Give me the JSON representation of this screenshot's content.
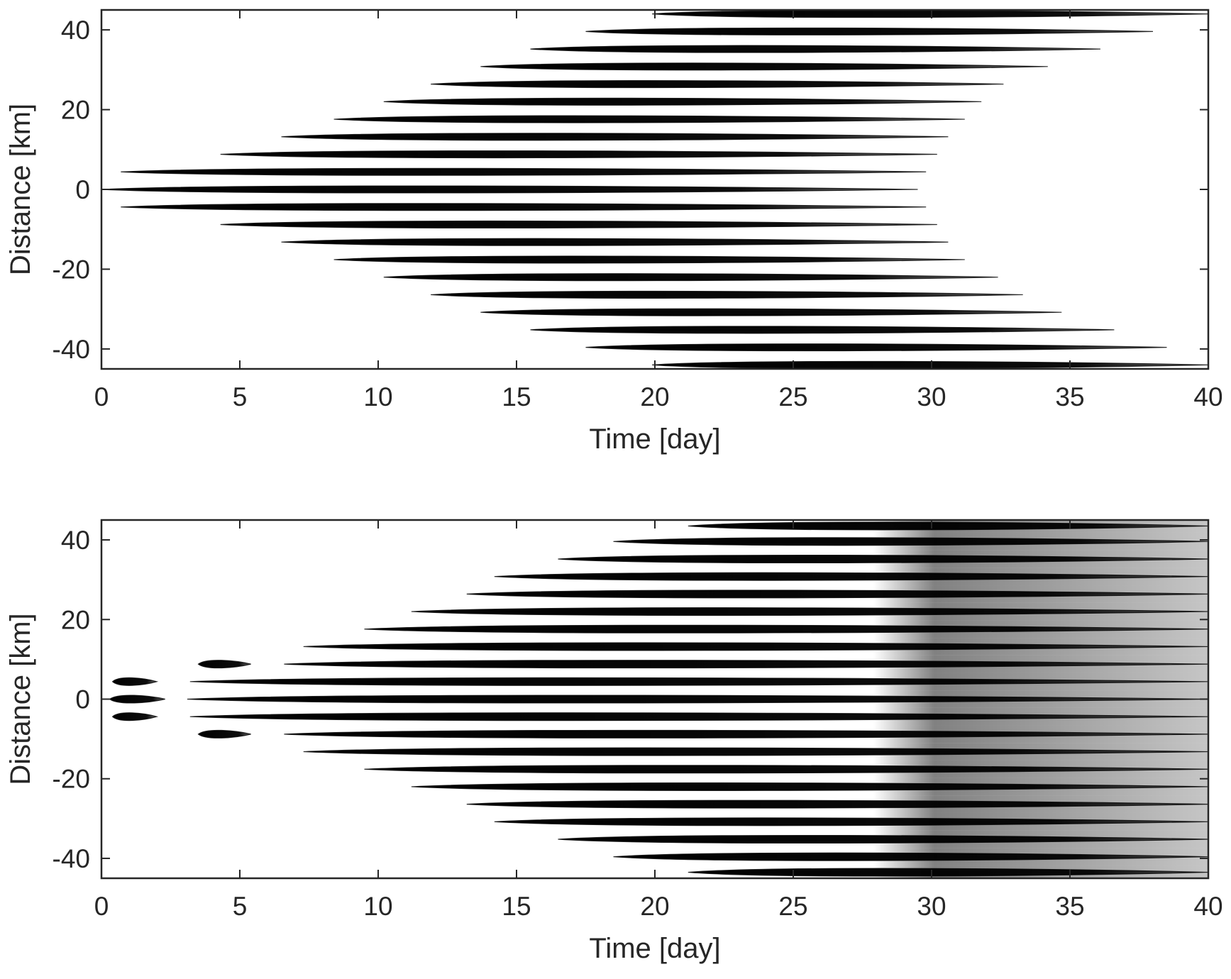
{
  "chart_data": [
    {
      "type": "heatmap",
      "panel": "top",
      "xlabel": "Time [day]",
      "ylabel": "Distance [km]",
      "xlim": [
        0,
        40
      ],
      "ylim": [
        -45,
        45
      ],
      "xticks": [
        0,
        5,
        10,
        15,
        20,
        25,
        30,
        35,
        40
      ],
      "yticks": [
        -40,
        -20,
        0,
        20,
        40
      ],
      "xtick_labels": [
        "0",
        "5",
        "10",
        "15",
        "20",
        "25",
        "30",
        "35",
        "40"
      ],
      "ytick_labels": [
        "-40",
        "-20",
        "0",
        "20",
        "40"
      ],
      "grid": false,
      "colormap": "grayscale",
      "colors": {
        "mark": "#000000",
        "background": "#ffffff",
        "axis": "#262626"
      },
      "streaks": [
        {
          "distance": 0,
          "start": 0.0,
          "end": 29.5
        },
        {
          "distance": 4.4,
          "start": 0.7,
          "end": 29.8
        },
        {
          "distance": -4.4,
          "start": 0.7,
          "end": 29.8
        },
        {
          "distance": 8.8,
          "start": 4.3,
          "end": 30.2
        },
        {
          "distance": -8.8,
          "start": 4.3,
          "end": 30.2
        },
        {
          "distance": 13.2,
          "start": 6.5,
          "end": 30.6
        },
        {
          "distance": -13.2,
          "start": 6.5,
          "end": 30.6
        },
        {
          "distance": 17.6,
          "start": 8.4,
          "end": 31.2
        },
        {
          "distance": -17.6,
          "start": 8.4,
          "end": 31.2
        },
        {
          "distance": 22.0,
          "start": 10.2,
          "end": 31.8
        },
        {
          "distance": -22.0,
          "start": 10.2,
          "end": 32.4
        },
        {
          "distance": 26.4,
          "start": 11.9,
          "end": 32.6
        },
        {
          "distance": -26.4,
          "start": 11.9,
          "end": 33.3
        },
        {
          "distance": 30.8,
          "start": 13.7,
          "end": 34.2
        },
        {
          "distance": -30.8,
          "start": 13.7,
          "end": 34.7
        },
        {
          "distance": 35.2,
          "start": 15.5,
          "end": 36.1
        },
        {
          "distance": -35.2,
          "start": 15.5,
          "end": 36.6
        },
        {
          "distance": 39.6,
          "start": 17.5,
          "end": 38.0
        },
        {
          "distance": -39.6,
          "start": 17.5,
          "end": 38.5
        },
        {
          "distance": 44.0,
          "start": 19.9,
          "end": 40.0
        },
        {
          "distance": -44.0,
          "start": 19.9,
          "end": 40.0
        }
      ]
    },
    {
      "type": "heatmap",
      "panel": "bottom",
      "xlabel": "Time [day]",
      "ylabel": "Distance [km]",
      "xlim": [
        0,
        40
      ],
      "ylim": [
        -45,
        45
      ],
      "xticks": [
        0,
        5,
        10,
        15,
        20,
        25,
        30,
        35,
        40
      ],
      "yticks": [
        -40,
        -20,
        0,
        20,
        40
      ],
      "xtick_labels": [
        "0",
        "5",
        "10",
        "15",
        "20",
        "25",
        "30",
        "35",
        "40"
      ],
      "ytick_labels": [
        "-40",
        "-20",
        "0",
        "20",
        "40"
      ],
      "grid": false,
      "colormap": "grayscale",
      "colors": {
        "mark": "#000000",
        "background": "#ffffff",
        "axis": "#262626"
      },
      "streaks": [
        {
          "distance": 4.4,
          "start": 0.4,
          "end": 2.0
        },
        {
          "distance": 0,
          "start": 0.3,
          "end": 2.3
        },
        {
          "distance": -4.4,
          "start": 0.4,
          "end": 2.0
        },
        {
          "distance": 8.8,
          "start": 3.5,
          "end": 5.4
        },
        {
          "distance": 4.4,
          "start": 3.2,
          "end": 40.0
        },
        {
          "distance": 0,
          "start": 3.1,
          "end": 40.0
        },
        {
          "distance": -4.4,
          "start": 3.2,
          "end": 40.0
        },
        {
          "distance": -8.8,
          "start": 3.5,
          "end": 5.4
        },
        {
          "distance": 8.8,
          "start": 6.6,
          "end": 40.0
        },
        {
          "distance": -8.8,
          "start": 6.6,
          "end": 40.0
        },
        {
          "distance": 13.2,
          "start": 7.3,
          "end": 40.0
        },
        {
          "distance": -13.2,
          "start": 7.3,
          "end": 40.0
        },
        {
          "distance": 17.6,
          "start": 9.5,
          "end": 40.0
        },
        {
          "distance": -17.6,
          "start": 9.5,
          "end": 40.0
        },
        {
          "distance": 22.0,
          "start": 11.2,
          "end": 40.0
        },
        {
          "distance": -22.0,
          "start": 11.2,
          "end": 40.0
        },
        {
          "distance": 26.4,
          "start": 13.2,
          "end": 40.0
        },
        {
          "distance": -26.4,
          "start": 13.2,
          "end": 40.0
        },
        {
          "distance": 30.8,
          "start": 14.2,
          "end": 40.0
        },
        {
          "distance": -30.8,
          "start": 14.2,
          "end": 40.0
        },
        {
          "distance": 35.2,
          "start": 16.5,
          "end": 40.0
        },
        {
          "distance": -35.2,
          "start": 16.5,
          "end": 40.0
        },
        {
          "distance": 39.6,
          "start": 18.5,
          "end": 40.0
        },
        {
          "distance": -39.6,
          "start": 18.5,
          "end": 40.0
        },
        {
          "distance": 43.5,
          "start": 21.2,
          "end": 40.0
        },
        {
          "distance": -43.5,
          "start": 21.2,
          "end": 40.0
        }
      ]
    }
  ]
}
